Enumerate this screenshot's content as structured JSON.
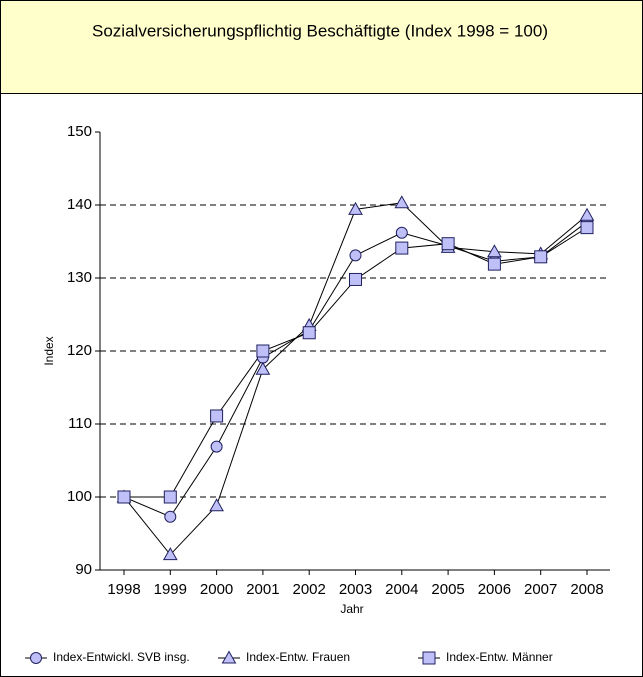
{
  "chart_data": {
    "type": "line",
    "title": "Sozialversicherungspflichtig Beschäftigte (Index 1998 = 100)",
    "x_label": "Jahr",
    "y_label": "Index",
    "categories": [
      "1998",
      "1999",
      "2000",
      "2001",
      "2002",
      "2003",
      "2004",
      "2005",
      "2006",
      "2007",
      "2008"
    ],
    "series": [
      {
        "name": "Index-Entwickl. SVB insg.",
        "marker": "circle",
        "color": "#c0c0f8",
        "values": [
          100,
          97.3,
          106.9,
          119.1,
          122.8,
          133.1,
          136.2,
          134.4,
          132.3,
          132.9,
          137.7
        ]
      },
      {
        "name": "Index-Entw. Frauen",
        "marker": "triangle",
        "color": "#c0c0f8",
        "values": [
          100,
          92.1,
          98.8,
          117.5,
          123.5,
          139.4,
          140.3,
          134.2,
          133.6,
          133.3,
          138.6
        ]
      },
      {
        "name": "Index-Entw. Männer",
        "marker": "square",
        "color": "#c0c0f8",
        "values": [
          100,
          100,
          111.1,
          120,
          122.5,
          129.8,
          134.1,
          134.7,
          131.9,
          132.9,
          136.9
        ]
      }
    ],
    "ylim": [
      90,
      150
    ],
    "yticks": [
      90,
      100,
      110,
      120,
      130,
      140,
      150
    ],
    "grid": true,
    "legend": "bottom"
  }
}
